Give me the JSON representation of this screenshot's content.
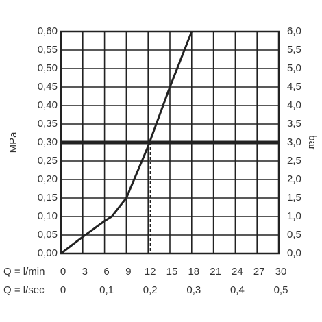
{
  "chart_data": {
    "type": "line",
    "xlabel": "Q = l/min",
    "x2label": "Q = l/sec",
    "ylabel": "MPa",
    "y2label": "bar",
    "xlim": [
      0,
      30
    ],
    "xticks": [
      0,
      3,
      6,
      9,
      12,
      15,
      18,
      21,
      24,
      27,
      30
    ],
    "x2lim": [
      0,
      0.5
    ],
    "x2ticks": [
      0,
      {
        "value": 0.1,
        "label": "0,1"
      },
      {
        "value": 0.2,
        "label": "0,2"
      },
      {
        "value": 0.3,
        "label": "0,3"
      },
      {
        "value": 0.4,
        "label": "0,4"
      },
      {
        "value": 0.5,
        "label": "0,5"
      }
    ],
    "ylim": [
      0,
      0.6
    ],
    "yticks": [
      {
        "value": 0,
        "label": "0,00"
      },
      {
        "value": 0.05,
        "label": "0,05"
      },
      {
        "value": 0.1,
        "label": "0,10"
      },
      {
        "value": 0.15,
        "label": "0,15"
      },
      {
        "value": 0.2,
        "label": "0,20"
      },
      {
        "value": 0.25,
        "label": "0,25"
      },
      {
        "value": 0.3,
        "label": "0,30"
      },
      {
        "value": 0.35,
        "label": "0,35"
      },
      {
        "value": 0.4,
        "label": "0,40"
      },
      {
        "value": 0.45,
        "label": "0,45"
      },
      {
        "value": 0.5,
        "label": "0,50"
      },
      {
        "value": 0.55,
        "label": "0,55"
      },
      {
        "value": 0.6,
        "label": "0,60"
      }
    ],
    "y2lim": [
      0,
      6
    ],
    "y2ticks": [
      {
        "value": 0,
        "label": "0,0"
      },
      {
        "value": 0.5,
        "label": "0,5"
      },
      {
        "value": 1,
        "label": "1,0"
      },
      {
        "value": 1.5,
        "label": "1,5"
      },
      {
        "value": 2,
        "label": "2,0"
      },
      {
        "value": 2.5,
        "label": "2,5"
      },
      {
        "value": 3,
        "label": "3,0"
      },
      {
        "value": 3.5,
        "label": "3,5"
      },
      {
        "value": 4,
        "label": "4,0"
      },
      {
        "value": 4.5,
        "label": "4,5"
      },
      {
        "value": 5,
        "label": "5,0"
      },
      {
        "value": 5.5,
        "label": "5,5"
      },
      {
        "value": 6,
        "label": "6,0"
      }
    ],
    "grid": true,
    "hline": 0.3,
    "vline": 12.3,
    "x": [
      0,
      3,
      6,
      7,
      9,
      12,
      15,
      18
    ],
    "series": [
      {
        "color": "#222222",
        "values": [
          0,
          0.045,
          0.088,
          0.1,
          0.15,
          0.29,
          0.45,
          0.6
        ]
      }
    ]
  }
}
